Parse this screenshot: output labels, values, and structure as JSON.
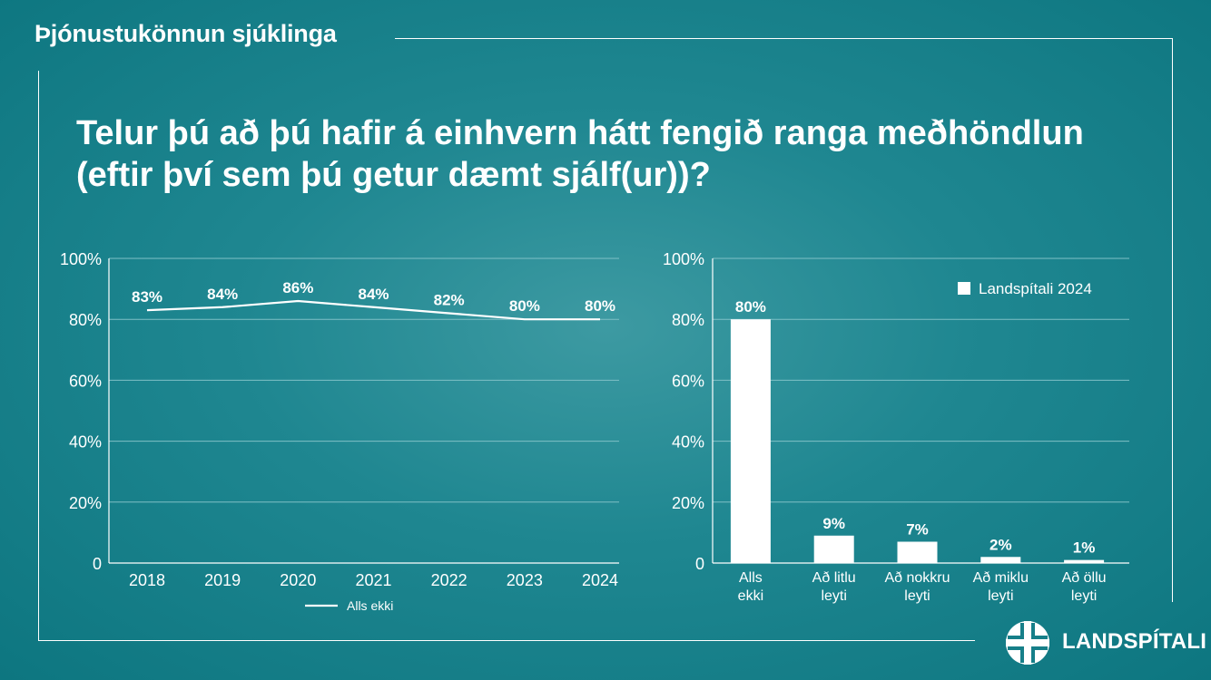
{
  "header": {
    "section_title": "Þjónustukönnun sjúklinga",
    "question_line1": "Telur þú að þú hafir á einhvern hátt fengið ranga meðhöndlun",
    "question_line2": "(eftir því sem þú getur dæmt sjálf(ur))?"
  },
  "chart_data": [
    {
      "type": "line",
      "x": [
        "2018",
        "2019",
        "2020",
        "2021",
        "2022",
        "2023",
        "2024"
      ],
      "series": [
        {
          "name": "Alls ekki",
          "values": [
            83,
            84,
            86,
            84,
            82,
            80,
            80
          ],
          "labels": [
            "83%",
            "84%",
            "86%",
            "84%",
            "82%",
            "80%",
            "80%"
          ]
        }
      ],
      "ylim": [
        0,
        100
      ],
      "yticks": [
        "0",
        "20%",
        "40%",
        "60%",
        "80%",
        "100%"
      ],
      "grid": true,
      "legend": "bottom-center"
    },
    {
      "type": "bar",
      "categories": [
        "Alls ekki",
        "Að litlu leyti",
        "Að nokkru leyti",
        "Að miklu leyti",
        "Að öllu leyti"
      ],
      "series": [
        {
          "name": "Landspítali 2024",
          "values": [
            80,
            9,
            7,
            2,
            1
          ],
          "labels": [
            "80%",
            "9%",
            "7%",
            "2%",
            "1%"
          ]
        }
      ],
      "ylim": [
        0,
        100
      ],
      "yticks": [
        "0",
        "20%",
        "40%",
        "60%",
        "80%",
        "100%"
      ],
      "grid": true,
      "legend": "top-right"
    }
  ],
  "logo": {
    "name": "LANDSPÍTALI",
    "icon": "landspitali-cross-icon"
  },
  "colors": {
    "line": "#ffffff",
    "bar": "#ffffff",
    "grid": "#7fc0c6",
    "axis": "#ffffff"
  }
}
